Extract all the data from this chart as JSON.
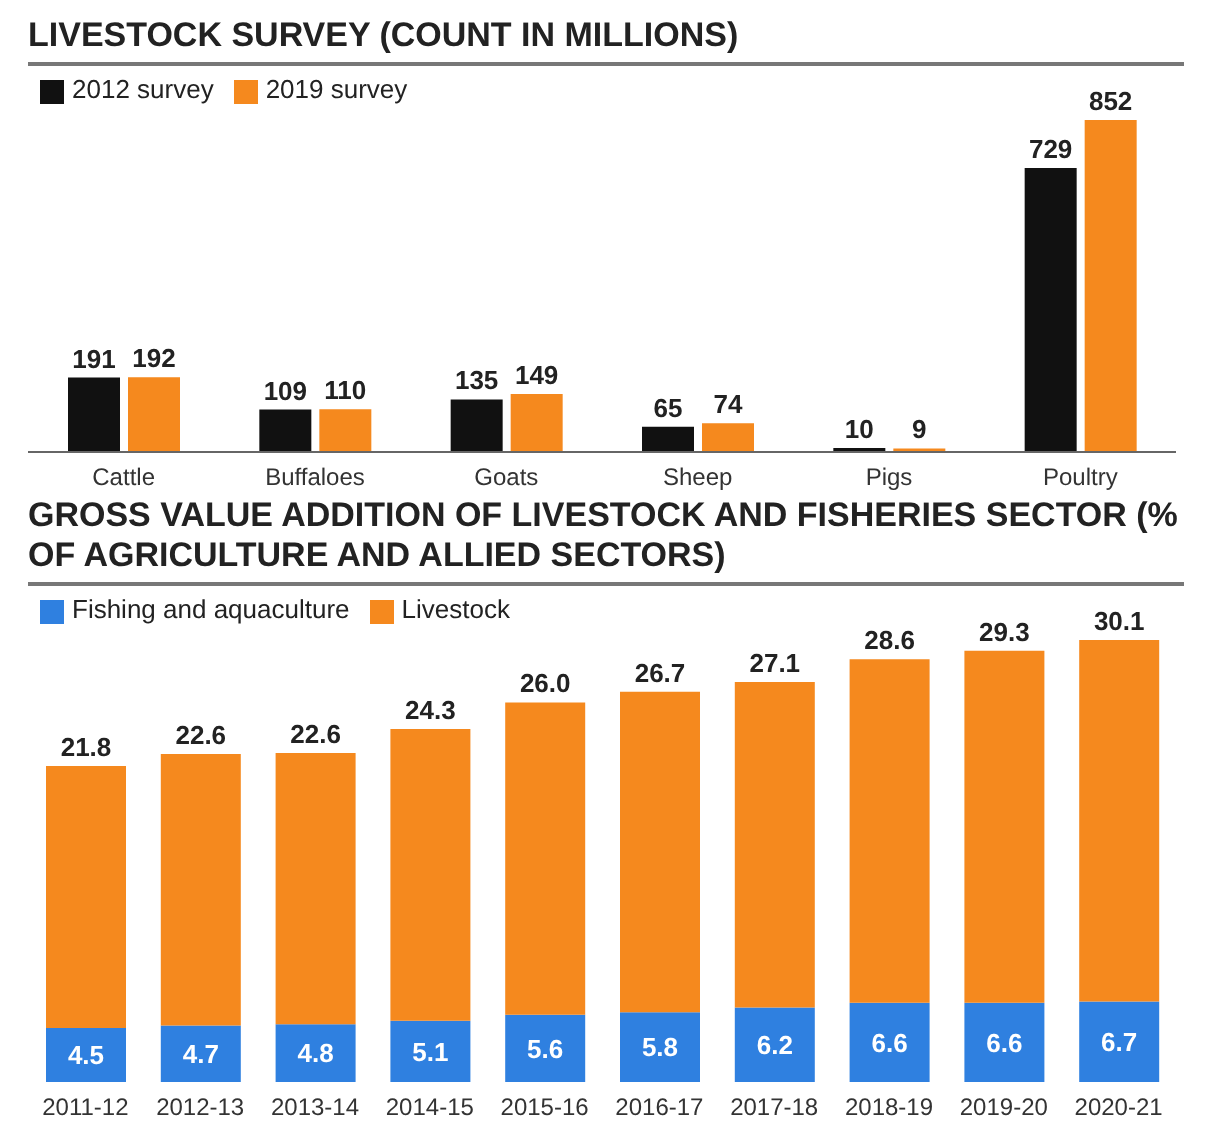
{
  "chart_data": [
    {
      "type": "bar",
      "title": "LIVESTOCK SURVEY (COUNT IN MILLIONS)",
      "categories": [
        "Cattle",
        "Buffaloes",
        "Goats",
        "Sheep",
        "Pigs",
        "Poultry"
      ],
      "series": [
        {
          "name": "2012 survey",
          "color": "#111111",
          "values": [
            191,
            109,
            135,
            65,
            10,
            729
          ]
        },
        {
          "name": "2019 survey",
          "color": "#f5891e",
          "values": [
            192,
            110,
            149,
            74,
            9,
            852
          ]
        }
      ],
      "data_labels": true,
      "legend": "top left",
      "grid": false
    },
    {
      "type": "bar",
      "title": "GROSS VALUE ADDITION OF LIVESTOCK AND FISHERIES SECTOR (% OF AGRICULTURE AND ALLIED SECTORS)",
      "categories": [
        "2011-12",
        "2012-13",
        "2013-14",
        "2014-15",
        "2015-16",
        "2016-17",
        "2017-18",
        "2018-19",
        "2019-20",
        "2020-21"
      ],
      "stacked": true,
      "series": [
        {
          "name": "Fishing and aquaculture",
          "color": "#2f80e0",
          "values": [
            4.5,
            4.7,
            4.8,
            5.1,
            5.6,
            5.8,
            6.2,
            6.6,
            6.6,
            6.7
          ]
        },
        {
          "name": "Livestock",
          "color": "#f5891e",
          "values": [
            21.8,
            22.6,
            22.6,
            24.3,
            26.0,
            26.7,
            27.1,
            28.6,
            29.3,
            30.1
          ],
          "value_labels": [
            "21.8",
            "22.6",
            "22.6",
            "24.3",
            "26.0",
            "26.7",
            "27.1",
            "28.6",
            "29.3",
            "30.1"
          ]
        }
      ],
      "data_labels": true,
      "legend": "top left",
      "grid": false
    }
  ]
}
